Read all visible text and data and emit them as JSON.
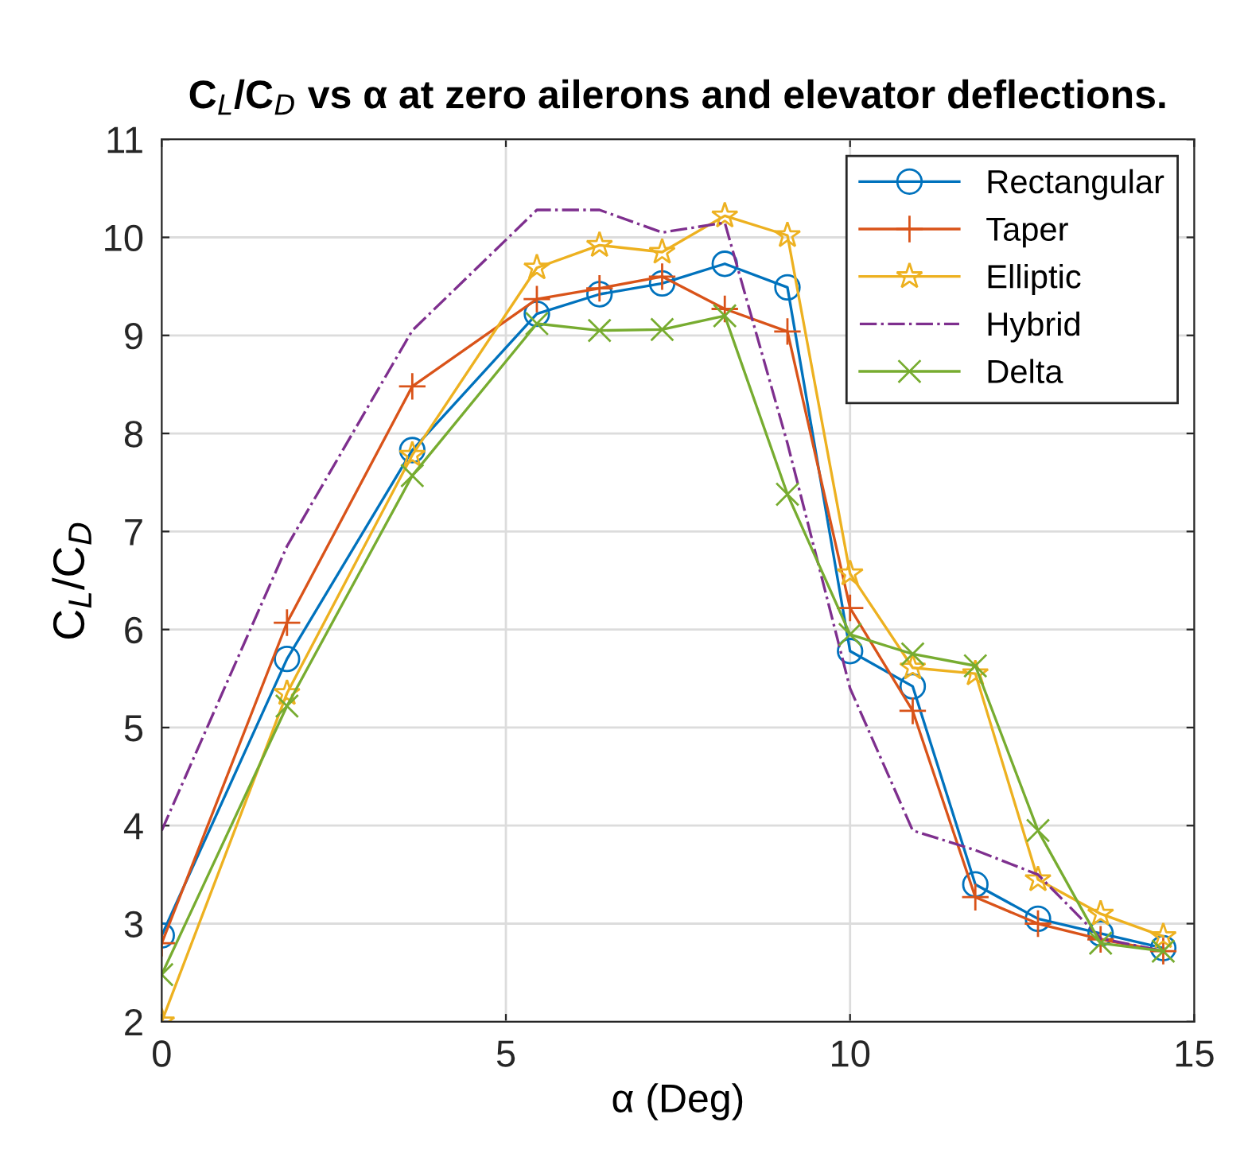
{
  "chart_data": {
    "type": "line",
    "title": "C$_{L}$/C$_{D}$ vs α at zero ailerons and elevator deflections.",
    "xlabel": "α (Deg)",
    "ylabel": "C$_{L}$/C$_{D}$",
    "x": [
      0,
      1.82,
      3.64,
      5.45,
      6.36,
      7.27,
      8.18,
      9.09,
      10,
      10.91,
      11.82,
      12.73,
      13.64,
      14.55
    ],
    "series": [
      {
        "name": "Rectangular",
        "color": "#0072bd",
        "marker": "circle",
        "line_style": "solid",
        "values": [
          2.88,
          5.7,
          7.83,
          9.22,
          9.42,
          9.53,
          9.73,
          9.49,
          5.78,
          5.42,
          3.4,
          3.05,
          2.9,
          2.75
        ]
      },
      {
        "name": "Taper",
        "color": "#d95319",
        "marker": "plus",
        "line_style": "solid",
        "values": [
          2.8,
          6.07,
          8.48,
          9.37,
          9.48,
          9.6,
          9.27,
          9.04,
          6.22,
          5.17,
          3.27,
          3.0,
          2.84,
          2.72
        ]
      },
      {
        "name": "Elliptic",
        "color": "#edb120",
        "marker": "star",
        "line_style": "solid",
        "values": [
          2.0,
          5.35,
          7.78,
          9.69,
          9.92,
          9.85,
          10.22,
          10.02,
          6.57,
          5.61,
          5.55,
          3.45,
          3.1,
          2.87
        ]
      },
      {
        "name": "Hybrid",
        "color": "#7e2f8e",
        "marker": "none",
        "line_style": "dashdot",
        "values": [
          3.95,
          6.85,
          9.05,
          10.28,
          10.28,
          10.05,
          10.15,
          7.9,
          5.4,
          3.95,
          3.75,
          3.5,
          2.85,
          2.72
        ]
      },
      {
        "name": "Delta",
        "color": "#77ac30",
        "marker": "cross",
        "line_style": "solid",
        "values": [
          2.48,
          5.22,
          7.57,
          9.12,
          9.05,
          9.06,
          9.2,
          7.38,
          5.95,
          5.75,
          5.63,
          3.95,
          2.8,
          2.72
        ]
      }
    ],
    "xlim": [
      0,
      15
    ],
    "xticks": [
      0,
      5,
      10,
      15
    ],
    "ylim": [
      2,
      11
    ],
    "yticks": [
      2,
      3,
      4,
      5,
      6,
      7,
      8,
      9,
      10,
      11
    ],
    "grid": true,
    "legend": "top right"
  }
}
